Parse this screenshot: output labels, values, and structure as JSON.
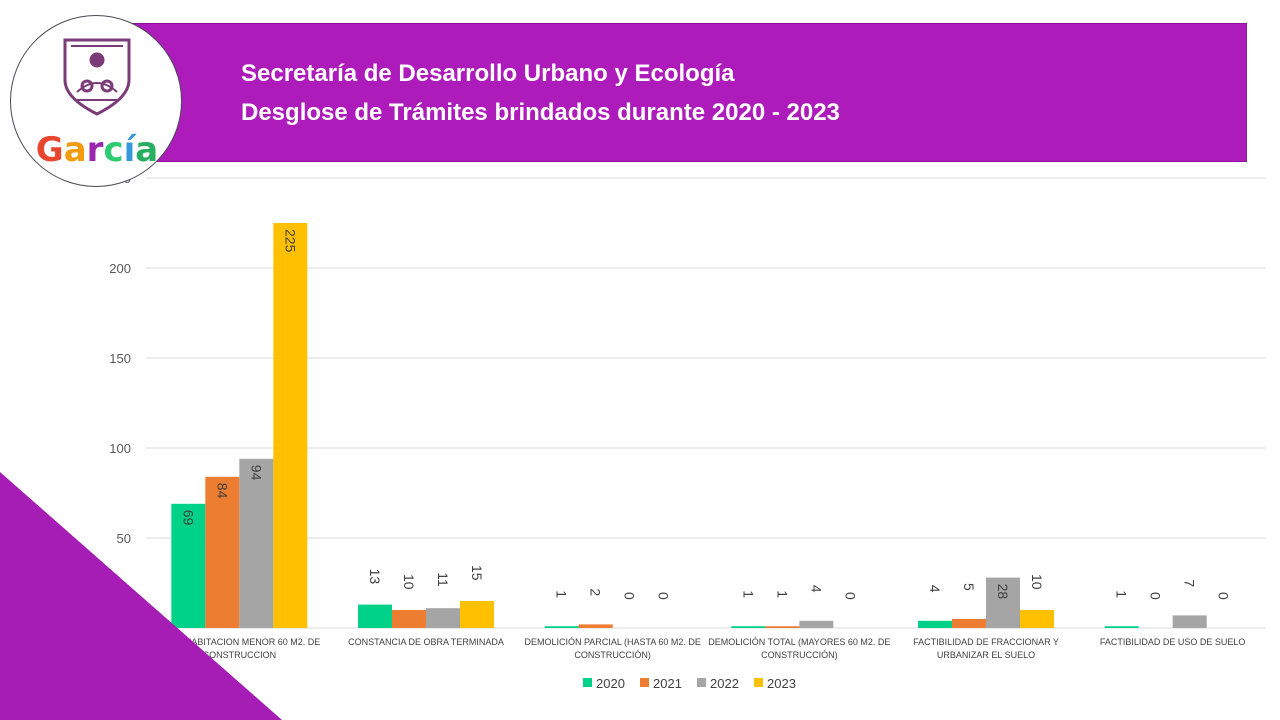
{
  "header": {
    "line1": "Secretaría de Desarrollo Urbano y Ecología",
    "line2": "Desglose de Trámites brindados durante 2020 - 2023"
  },
  "logo": {
    "text": "García"
  },
  "colors": {
    "banner": "#ad1bbb",
    "corner": "#a61db5",
    "s2020": "#00d28a",
    "s2021": "#ed7d31",
    "s2022": "#a5a5a5",
    "s2023": "#ffc000"
  },
  "chart_data": {
    "type": "bar",
    "title": "",
    "xlabel": "",
    "ylabel": "",
    "ylim": [
      0,
      250
    ],
    "yticks": [
      0,
      50,
      100,
      150,
      200,
      250
    ],
    "grid": true,
    "legend_position": "bottom",
    "categories": [
      [
        "CASA HABITACION MENOR 60 M2. DE",
        "CONSTRUCCION"
      ],
      [
        "CONSTANCIA DE OBRA TERMINADA"
      ],
      [
        "DEMOLICIÓN PARCIAL (HASTA 60 M2. DE",
        "CONSTRUCCIÓN)"
      ],
      [
        "DEMOLICIÓN TOTAL (MAYORES 60 M2. DE",
        "CONSTRUCCIÓN)"
      ],
      [
        "FACTIBILIDAD DE FRACCIONAR Y",
        "URBANIZAR EL SUELO"
      ],
      [
        "FACTIBILIDAD DE USO DE SUELO"
      ]
    ],
    "series": [
      {
        "name": "2020",
        "color": "#00d28a",
        "values": [
          69,
          13,
          1,
          1,
          4,
          1
        ]
      },
      {
        "name": "2021",
        "color": "#ed7d31",
        "values": [
          84,
          10,
          2,
          1,
          5,
          0
        ]
      },
      {
        "name": "2022",
        "color": "#a5a5a5",
        "values": [
          94,
          11,
          0,
          4,
          28,
          7
        ]
      },
      {
        "name": "2023",
        "color": "#ffc000",
        "values": [
          225,
          15,
          0,
          0,
          10,
          0
        ]
      }
    ]
  }
}
